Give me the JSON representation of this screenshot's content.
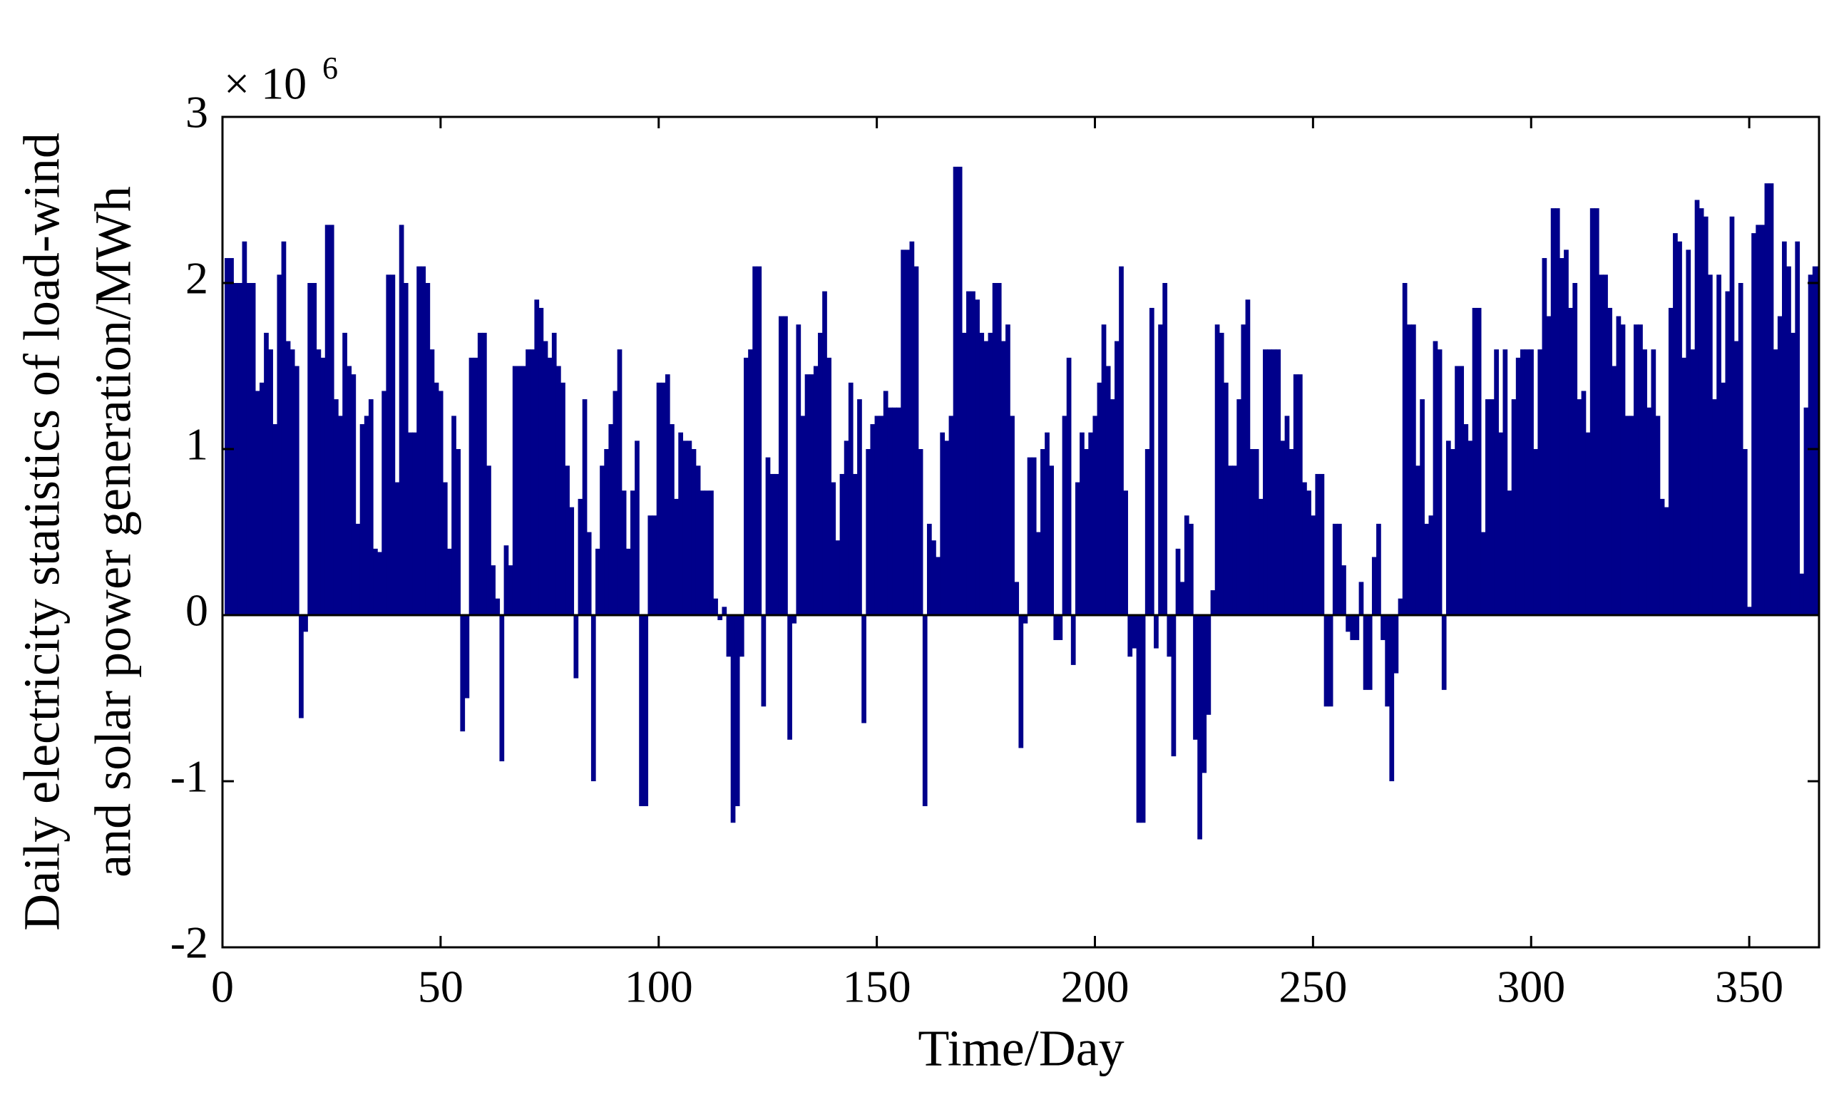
{
  "chart_data": {
    "type": "bar",
    "multiplier": "× 10",
    "multiplier_exponent": 6,
    "xlabel": "Time/Day",
    "ylabel": [
      "Daily electricity statistics of load-wind",
      "and solar power generation/MWh"
    ],
    "color": "#00008b",
    "xlim": [
      0,
      366
    ],
    "ylim": [
      -2,
      3
    ],
    "xticks": [
      0,
      50,
      100,
      150,
      200,
      250,
      300,
      350
    ],
    "yticks": [
      -2,
      -1,
      0,
      1,
      2,
      3
    ],
    "x": [
      1,
      2,
      3,
      4,
      5,
      6,
      7,
      8,
      9,
      10,
      11,
      12,
      13,
      14,
      15,
      16,
      17,
      18,
      19,
      20,
      21,
      22,
      23,
      24,
      25,
      26,
      27,
      28,
      29,
      30,
      31,
      32,
      33,
      34,
      35,
      36,
      37,
      38,
      39,
      40,
      41,
      42,
      43,
      44,
      45,
      46,
      47,
      48,
      49,
      50,
      51,
      52,
      53,
      54,
      55,
      56,
      57,
      58,
      59,
      60,
      61,
      62,
      63,
      64,
      65,
      66,
      67,
      68,
      69,
      70,
      71,
      72,
      73,
      74,
      75,
      76,
      77,
      78,
      79,
      80,
      81,
      82,
      83,
      84,
      85,
      86,
      87,
      88,
      89,
      90,
      91,
      92,
      93,
      94,
      95,
      96,
      97,
      98,
      99,
      100,
      101,
      102,
      103,
      104,
      105,
      106,
      107,
      108,
      109,
      110,
      111,
      112,
      113,
      114,
      115,
      116,
      117,
      118,
      119,
      120,
      121,
      122,
      123,
      124,
      125,
      126,
      127,
      128,
      129,
      130,
      131,
      132,
      133,
      134,
      135,
      136,
      137,
      138,
      139,
      140,
      141,
      142,
      143,
      144,
      145,
      146,
      147,
      148,
      149,
      150,
      151,
      152,
      153,
      154,
      155,
      156,
      157,
      158,
      159,
      160,
      161,
      162,
      163,
      164,
      165,
      166,
      167,
      168,
      169,
      170,
      171,
      172,
      173,
      174,
      175,
      176,
      177,
      178,
      179,
      180,
      181,
      182,
      183,
      184,
      185,
      186,
      187,
      188,
      189,
      190,
      191,
      192,
      193,
      194,
      195,
      196,
      197,
      198,
      199,
      200,
      201,
      202,
      203,
      204,
      205,
      206,
      207,
      208,
      209,
      210,
      211,
      212,
      213,
      214,
      215,
      216,
      217,
      218,
      219,
      220,
      221,
      222,
      223,
      224,
      225,
      226,
      227,
      228,
      229,
      230,
      231,
      232,
      233,
      234,
      235,
      236,
      237,
      238,
      239,
      240,
      241,
      242,
      243,
      244,
      245,
      246,
      247,
      248,
      249,
      250,
      251,
      252,
      253,
      254,
      255,
      256,
      257,
      258,
      259,
      260,
      261,
      262,
      263,
      264,
      265,
      266,
      267,
      268,
      269,
      270,
      271,
      272,
      273,
      274,
      275,
      276,
      277,
      278,
      279,
      280,
      281,
      282,
      283,
      284,
      285,
      286,
      287,
      288,
      289,
      290,
      291,
      292,
      293,
      294,
      295,
      296,
      297,
      298,
      299,
      300,
      301,
      302,
      303,
      304,
      305,
      306,
      307,
      308,
      309,
      310,
      311,
      312,
      313,
      314,
      315,
      316,
      317,
      318,
      319,
      320,
      321,
      322,
      323,
      324,
      325,
      326,
      327,
      328,
      329,
      330,
      331,
      332,
      333,
      334,
      335,
      336,
      337,
      338,
      339,
      340,
      341,
      342,
      343,
      344,
      345,
      346,
      347,
      348,
      349,
      350,
      351,
      352,
      353,
      354,
      355,
      356,
      357,
      358,
      359,
      360,
      361,
      362,
      363,
      364,
      365,
      366
    ],
    "values": [
      2.15,
      2.15,
      2.0,
      2.0,
      2.25,
      2.0,
      2.0,
      1.35,
      1.4,
      1.7,
      1.6,
      1.15,
      2.05,
      2.25,
      1.65,
      1.6,
      1.5,
      -0.62,
      -0.1,
      2.0,
      2.0,
      1.6,
      1.55,
      2.35,
      2.35,
      1.3,
      1.2,
      1.7,
      1.5,
      1.45,
      0.55,
      1.15,
      1.2,
      1.3,
      0.4,
      0.38,
      1.35,
      2.05,
      2.05,
      0.8,
      2.35,
      2.0,
      1.1,
      1.1,
      2.1,
      2.1,
      2.0,
      1.6,
      1.4,
      1.35,
      0.8,
      0.4,
      1.2,
      1.0,
      -0.7,
      -0.5,
      1.55,
      1.55,
      1.7,
      1.7,
      0.9,
      0.3,
      0.1,
      -0.88,
      0.42,
      0.3,
      1.5,
      1.5,
      1.5,
      1.6,
      1.6,
      1.9,
      1.85,
      1.65,
      1.55,
      1.7,
      1.5,
      1.4,
      0.9,
      0.65,
      -0.38,
      0.7,
      1.3,
      0.5,
      -1.0,
      0.4,
      0.9,
      1.0,
      1.15,
      1.35,
      1.6,
      0.75,
      0.4,
      0.75,
      1.05,
      -1.15,
      -1.15,
      0.6,
      0.6,
      1.4,
      1.4,
      1.45,
      1.15,
      0.7,
      1.1,
      1.05,
      1.05,
      1.0,
      0.9,
      0.75,
      0.75,
      0.75,
      0.1,
      -0.03,
      0.05,
      -0.25,
      -1.25,
      -1.15,
      -0.25,
      1.55,
      1.6,
      2.1,
      2.1,
      -0.55,
      0.95,
      0.85,
      0.85,
      1.8,
      1.8,
      -0.75,
      -0.05,
      1.75,
      1.2,
      1.45,
      1.45,
      1.5,
      1.7,
      1.95,
      1.55,
      0.8,
      0.45,
      0.85,
      1.05,
      1.4,
      0.85,
      1.3,
      -0.65,
      1.0,
      1.15,
      1.2,
      1.2,
      1.35,
      1.25,
      1.25,
      1.25,
      2.2,
      2.2,
      2.25,
      2.1,
      1.0,
      -1.15,
      0.55,
      0.45,
      0.35,
      1.1,
      1.05,
      1.2,
      2.7,
      2.7,
      1.7,
      1.95,
      1.95,
      1.9,
      1.7,
      1.65,
      1.7,
      2.0,
      2.0,
      1.65,
      1.75,
      1.2,
      0.2,
      -0.8,
      -0.05,
      0.95,
      0.95,
      0.5,
      1.0,
      1.1,
      0.9,
      -0.15,
      -0.15,
      1.2,
      1.55,
      -0.3,
      0.8,
      1.1,
      1.0,
      1.1,
      1.2,
      1.4,
      1.75,
      1.5,
      1.3,
      1.65,
      2.1,
      0.75,
      -0.25,
      -0.2,
      -1.25,
      -1.25,
      1.0,
      1.85,
      -0.2,
      1.75,
      2.0,
      -0.25,
      -0.85,
      0.4,
      0.2,
      0.6,
      0.55,
      -0.75,
      -1.35,
      -0.95,
      -0.6,
      0.15,
      1.75,
      1.7,
      1.4,
      0.9,
      0.9,
      1.3,
      1.75,
      1.9,
      1.0,
      1.0,
      0.7,
      1.6,
      1.6,
      1.6,
      1.6,
      1.05,
      1.2,
      1.0,
      1.45,
      1.45,
      0.8,
      0.75,
      0.6,
      0.85,
      0.85,
      -0.55,
      -0.55,
      0.55,
      0.55,
      0.3,
      -0.1,
      -0.15,
      -0.15,
      0.2,
      -0.45,
      -0.45,
      0.35,
      0.55,
      -0.15,
      -0.55,
      -1.0,
      -0.35,
      0.1,
      2.0,
      1.75,
      1.75,
      0.9,
      1.3,
      0.55,
      0.6,
      1.65,
      1.6,
      -0.45,
      1.05,
      1.0,
      1.5,
      1.5,
      1.15,
      1.05,
      1.85,
      1.85,
      0.5,
      1.3,
      1.3,
      1.6,
      1.1,
      1.6,
      0.75,
      1.3,
      1.55,
      1.6,
      1.6,
      1.6,
      1.0,
      1.6,
      2.15,
      1.8,
      2.45,
      2.45,
      2.15,
      2.2,
      1.85,
      2.0,
      1.3,
      1.35,
      1.1,
      2.45,
      2.45,
      2.05,
      2.05,
      1.85,
      1.5,
      1.8,
      1.75,
      1.2,
      1.2,
      1.75,
      1.75,
      1.6,
      1.25,
      1.6,
      1.2,
      0.7,
      0.65,
      1.85,
      2.3,
      2.25,
      1.55,
      2.2,
      1.6,
      2.5,
      2.45,
      2.4,
      2.05,
      1.3,
      2.05,
      1.4,
      1.95,
      2.4,
      1.65,
      2.0,
      1.0,
      0.05,
      2.3,
      2.35,
      2.35,
      2.6,
      2.6,
      1.6,
      1.8,
      2.25,
      2.1,
      1.7,
      2.25,
      0.25,
      1.25,
      2.05,
      2.1,
      2.1
    ]
  }
}
